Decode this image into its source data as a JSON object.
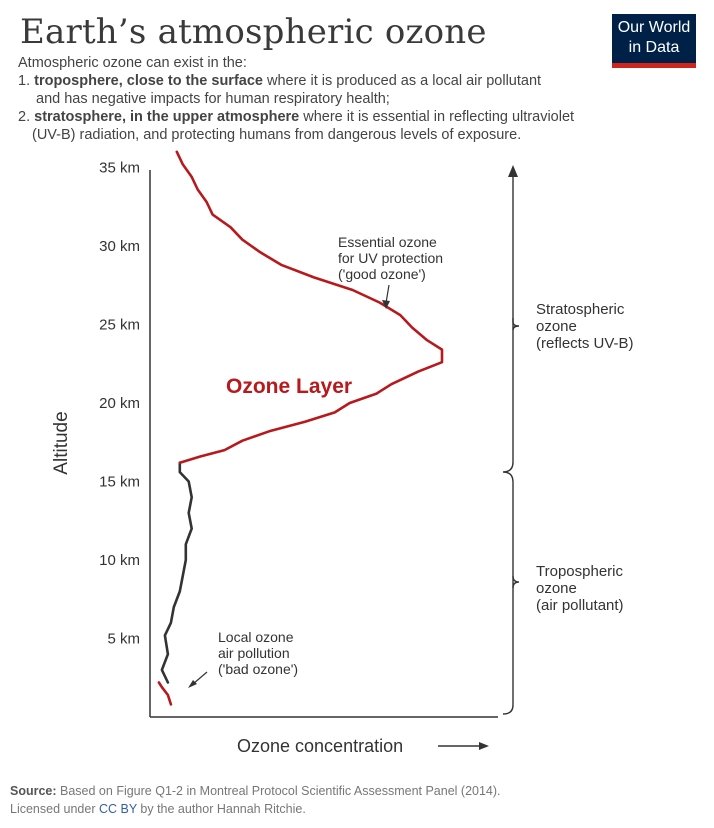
{
  "header": {
    "title": "Earth’s atmospheric ozone",
    "logo_line1": "Our World",
    "logo_line2": "in Data",
    "intro": "Atmospheric ozone can exist in the:",
    "item1_num": "1.",
    "item1_bold": "troposphere, close to the surface",
    "item1_rest": " where it is produced as a local air pollutant",
    "item1_line2": "and has negative impacts for human respiratory health;",
    "item2_num": "2.",
    "item2_bold": "stratosphere, in the upper atmosphere",
    "item2_rest": " where it is essential in reflecting ultraviolet",
    "item2_line2": "(UV-B) radiation, and protecting humans from dangerous levels of exposure."
  },
  "footer": {
    "source_label": "Source:",
    "source_text": " Based on Figure Q1-2 in Montreal Protocol Scientific Assessment Panel (2014).",
    "license_pre": "Licensed under ",
    "license_link": "CC BY",
    "license_post": " by the author Hannah Ritchie."
  },
  "colors": {
    "stratosphere_line": "#b7191c",
    "troposphere_line": "#333333",
    "axis": "#333333",
    "logo_bg": "#002147",
    "logo_accent": "#ce261e"
  },
  "chart_data": {
    "type": "line",
    "xlabel": "Ozone concentration",
    "ylabel": "Altitude",
    "y_unit": "km",
    "ylim": [
      0,
      37
    ],
    "y_ticks": [
      5,
      10,
      15,
      20,
      25,
      30,
      35
    ],
    "y_tick_labels": [
      "5 km",
      "10 km",
      "15 km",
      "20 km",
      "25 km",
      "30 km",
      "35 km"
    ],
    "x_ticks": "none",
    "curve_label": "Ozone Layer",
    "series": [
      {
        "segment": "troposphere",
        "color": "#333333",
        "points": [
          {
            "altitude": 2.2,
            "concentration": 0.06
          },
          {
            "altitude": 3.0,
            "concentration": 0.04
          },
          {
            "altitude": 4.0,
            "concentration": 0.06
          },
          {
            "altitude": 5.2,
            "concentration": 0.05
          },
          {
            "altitude": 6.0,
            "concentration": 0.07
          },
          {
            "altitude": 7.0,
            "concentration": 0.08
          },
          {
            "altitude": 8.0,
            "concentration": 0.1
          },
          {
            "altitude": 9.0,
            "concentration": 0.11
          },
          {
            "altitude": 10.0,
            "concentration": 0.12
          },
          {
            "altitude": 11.0,
            "concentration": 0.12
          },
          {
            "altitude": 12.0,
            "concentration": 0.14
          },
          {
            "altitude": 13.0,
            "concentration": 0.13
          },
          {
            "altitude": 14.0,
            "concentration": 0.14
          },
          {
            "altitude": 15.0,
            "concentration": 0.13
          },
          {
            "altitude": 15.6,
            "concentration": 0.1
          },
          {
            "altitude": 16.2,
            "concentration": 0.1
          }
        ]
      },
      {
        "segment": "stratosphere",
        "color": "#b7191c",
        "points": [
          {
            "altitude": 16.2,
            "concentration": 0.1
          },
          {
            "altitude": 16.6,
            "concentration": 0.17
          },
          {
            "altitude": 17.0,
            "concentration": 0.25
          },
          {
            "altitude": 17.6,
            "concentration": 0.31
          },
          {
            "altitude": 18.2,
            "concentration": 0.4
          },
          {
            "altitude": 18.8,
            "concentration": 0.52
          },
          {
            "altitude": 19.4,
            "concentration": 0.62
          },
          {
            "altitude": 20.0,
            "concentration": 0.67
          },
          {
            "altitude": 20.6,
            "concentration": 0.76
          },
          {
            "altitude": 21.2,
            "concentration": 0.81
          },
          {
            "altitude": 22.0,
            "concentration": 0.9
          },
          {
            "altitude": 22.6,
            "concentration": 0.98
          },
          {
            "altitude": 23.4,
            "concentration": 0.98
          },
          {
            "altitude": 24.0,
            "concentration": 0.93
          },
          {
            "altitude": 24.8,
            "concentration": 0.88
          },
          {
            "altitude": 25.6,
            "concentration": 0.84
          },
          {
            "altitude": 26.4,
            "concentration": 0.77
          },
          {
            "altitude": 27.2,
            "concentration": 0.68
          },
          {
            "altitude": 28.0,
            "concentration": 0.55
          },
          {
            "altitude": 28.8,
            "concentration": 0.44
          },
          {
            "altitude": 29.6,
            "concentration": 0.37
          },
          {
            "altitude": 30.4,
            "concentration": 0.31
          },
          {
            "altitude": 31.2,
            "concentration": 0.27
          },
          {
            "altitude": 32.0,
            "concentration": 0.21
          },
          {
            "altitude": 32.8,
            "concentration": 0.19
          },
          {
            "altitude": 33.6,
            "concentration": 0.16
          },
          {
            "altitude": 34.4,
            "concentration": 0.14
          },
          {
            "altitude": 35.2,
            "concentration": 0.11
          },
          {
            "altitude": 36.0,
            "concentration": 0.09
          }
        ]
      },
      {
        "segment": "surface",
        "color": "#b7191c",
        "points": [
          {
            "altitude": 0.8,
            "concentration": 0.07
          },
          {
            "altitude": 1.4,
            "concentration": 0.06
          },
          {
            "altitude": 1.9,
            "concentration": 0.04
          },
          {
            "altitude": 2.2,
            "concentration": 0.03
          }
        ]
      }
    ],
    "annotations": [
      {
        "text": [
          "Essential ozone",
          "for UV protection",
          "('good ozone')"
        ],
        "points_to_altitude": 27.0
      },
      {
        "text": [
          "Local ozone",
          "air pollution",
          "('bad ozone')"
        ],
        "points_to_altitude": 2.0
      }
    ],
    "brackets": [
      {
        "label": [
          "Stratospheric",
          "ozone",
          "(reflects UV-B)"
        ],
        "from_altitude": 16.2,
        "to_altitude": 37
      },
      {
        "label": [
          "Tropospheric",
          "ozone",
          "(air pollutant)"
        ],
        "from_altitude": 0,
        "to_altitude": 16.2
      }
    ]
  }
}
